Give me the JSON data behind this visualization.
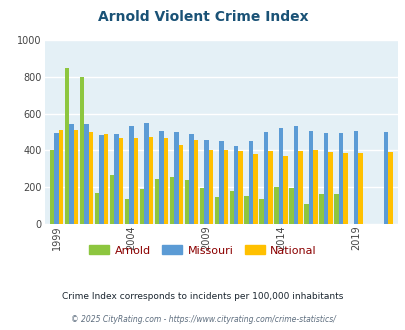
{
  "title": "Arnold Violent Crime Index",
  "years": [
    1999,
    2000,
    2001,
    2002,
    2003,
    2004,
    2005,
    2006,
    2007,
    2008,
    2009,
    2010,
    2011,
    2012,
    2013,
    2014,
    2015,
    2016,
    2017,
    2018,
    2019,
    2020,
    2021
  ],
  "arnold": [
    400,
    845,
    800,
    170,
    265,
    140,
    190,
    245,
    255,
    240,
    195,
    150,
    180,
    155,
    140,
    200,
    195,
    110,
    165,
    165,
    0,
    0,
    0
  ],
  "missouri": [
    495,
    545,
    545,
    485,
    490,
    535,
    550,
    505,
    500,
    490,
    455,
    450,
    425,
    450,
    500,
    520,
    535,
    505,
    495,
    495,
    505,
    0,
    500
  ],
  "national": [
    510,
    510,
    500,
    490,
    465,
    465,
    475,
    465,
    430,
    455,
    405,
    400,
    395,
    380,
    395,
    370,
    395,
    405,
    390,
    385,
    385,
    0,
    390
  ],
  "arnold_color": "#8dc63f",
  "missouri_color": "#5b9bd5",
  "national_color": "#ffc000",
  "bg_color": "#e4f0f6",
  "ylim": [
    0,
    1000
  ],
  "yticks": [
    0,
    200,
    400,
    600,
    800,
    1000
  ],
  "xtick_labels": [
    "1999",
    "2004",
    "2009",
    "2014",
    "2019"
  ],
  "xtick_positions": [
    1999,
    2004,
    2009,
    2014,
    2019
  ],
  "legend_labels": [
    "Arnold",
    "Missouri",
    "National"
  ],
  "subtitle": "Crime Index corresponds to incidents per 100,000 inhabitants",
  "footer": "© 2025 CityRating.com - https://www.cityrating.com/crime-statistics/",
  "title_color": "#1a5276",
  "subtitle_color": "#1a252f",
  "footer_color": "#5d6d7e",
  "legend_text_color": "#8B0000"
}
